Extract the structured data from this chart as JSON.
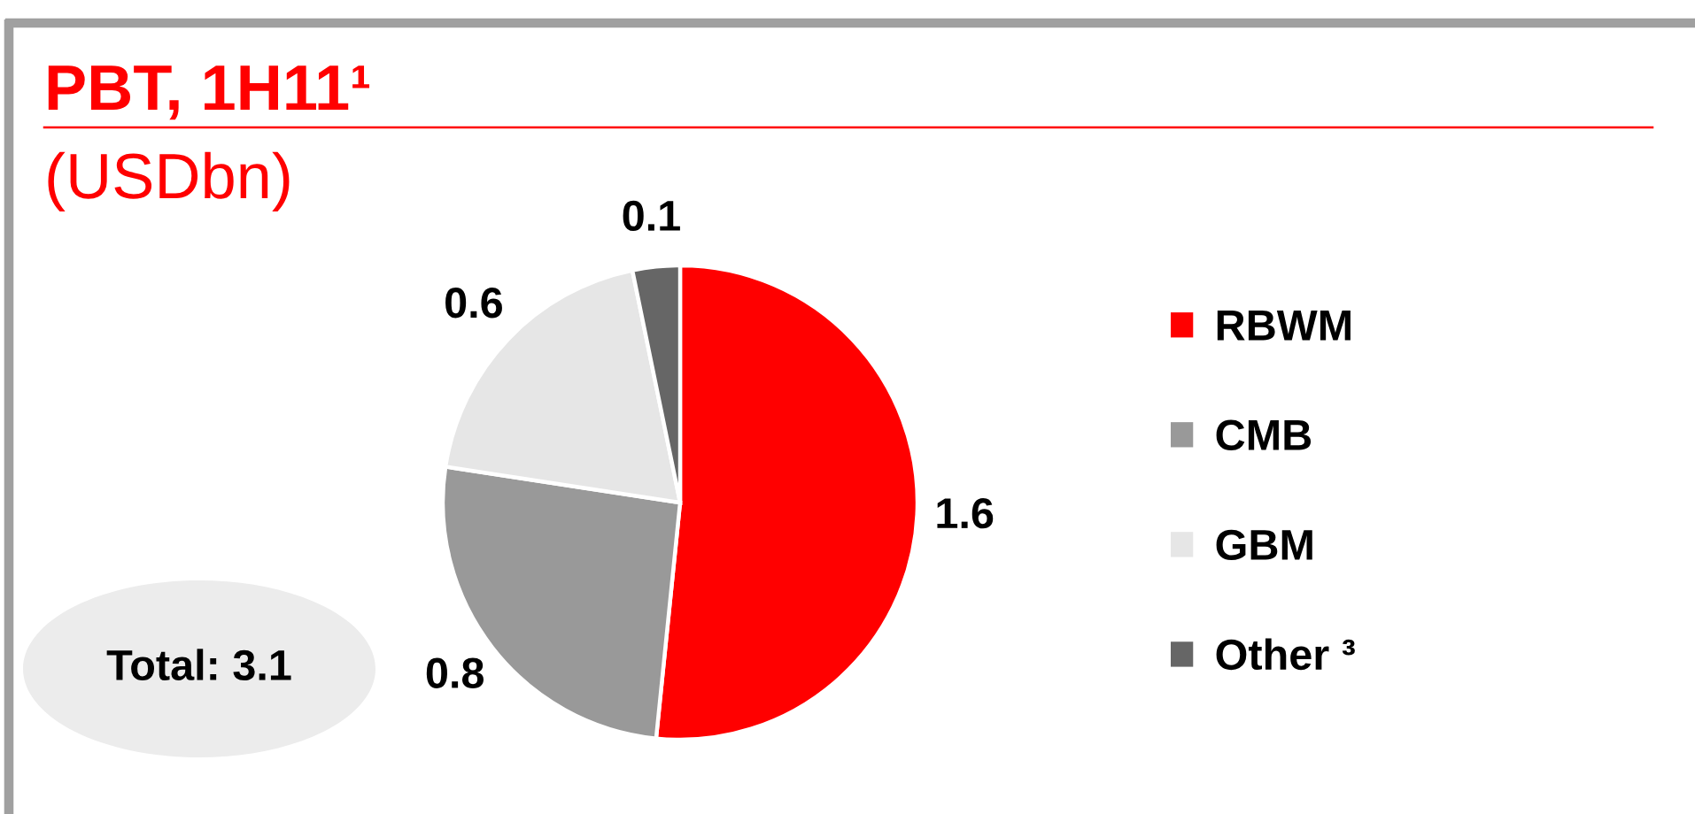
{
  "chart_data": {
    "type": "pie",
    "title": "PBT, 1H11¹",
    "subtitle": "(USDbn)",
    "categories": [
      "RBWM",
      "CMB",
      "GBM",
      "Other ³"
    ],
    "values": [
      1.6,
      0.8,
      0.6,
      0.1
    ],
    "colors": [
      "#ff0000",
      "#999999",
      "#e6e6e6",
      "#666666"
    ],
    "data_labels": true,
    "legend": "right",
    "annotations": [
      "Total: 3.1"
    ]
  }
}
